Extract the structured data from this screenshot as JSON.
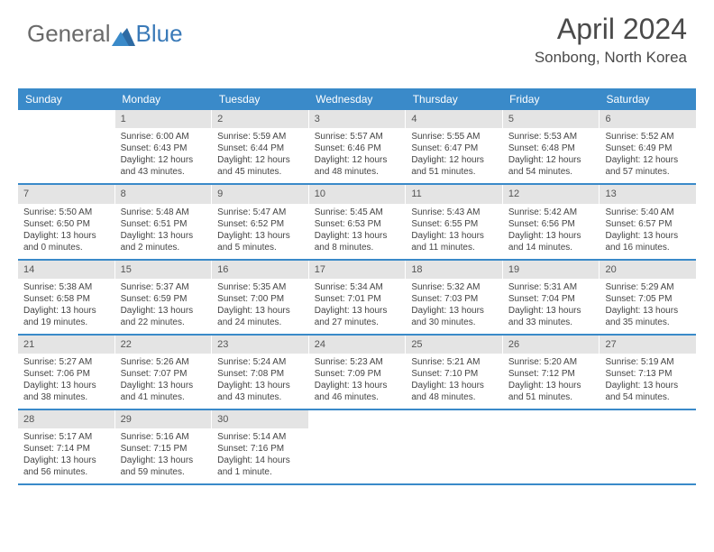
{
  "brand": {
    "part1": "General",
    "part2": "Blue"
  },
  "title": "April 2024",
  "location": "Sonbong, North Korea",
  "colors": {
    "header_bg": "#3a8ac9",
    "header_text": "#ffffff",
    "daynum_bg": "#e4e4e4",
    "daynum_text": "#555555",
    "body_text": "#444444",
    "rule": "#3a8ac9",
    "logo_gray": "#6a6a6a",
    "logo_blue": "#3a7ab8",
    "title_color": "#4a4a4a"
  },
  "typography": {
    "title_fontsize": 32,
    "location_fontsize": 17,
    "dow_fontsize": 12,
    "daynum_fontsize": 11,
    "body_fontsize": 10
  },
  "dow": [
    "Sunday",
    "Monday",
    "Tuesday",
    "Wednesday",
    "Thursday",
    "Friday",
    "Saturday"
  ],
  "weeks": [
    [
      {
        "n": "",
        "sr": "",
        "ss": "",
        "dl": ""
      },
      {
        "n": "1",
        "sr": "Sunrise: 6:00 AM",
        "ss": "Sunset: 6:43 PM",
        "dl": "Daylight: 12 hours and 43 minutes."
      },
      {
        "n": "2",
        "sr": "Sunrise: 5:59 AM",
        "ss": "Sunset: 6:44 PM",
        "dl": "Daylight: 12 hours and 45 minutes."
      },
      {
        "n": "3",
        "sr": "Sunrise: 5:57 AM",
        "ss": "Sunset: 6:46 PM",
        "dl": "Daylight: 12 hours and 48 minutes."
      },
      {
        "n": "4",
        "sr": "Sunrise: 5:55 AM",
        "ss": "Sunset: 6:47 PM",
        "dl": "Daylight: 12 hours and 51 minutes."
      },
      {
        "n": "5",
        "sr": "Sunrise: 5:53 AM",
        "ss": "Sunset: 6:48 PM",
        "dl": "Daylight: 12 hours and 54 minutes."
      },
      {
        "n": "6",
        "sr": "Sunrise: 5:52 AM",
        "ss": "Sunset: 6:49 PM",
        "dl": "Daylight: 12 hours and 57 minutes."
      }
    ],
    [
      {
        "n": "7",
        "sr": "Sunrise: 5:50 AM",
        "ss": "Sunset: 6:50 PM",
        "dl": "Daylight: 13 hours and 0 minutes."
      },
      {
        "n": "8",
        "sr": "Sunrise: 5:48 AM",
        "ss": "Sunset: 6:51 PM",
        "dl": "Daylight: 13 hours and 2 minutes."
      },
      {
        "n": "9",
        "sr": "Sunrise: 5:47 AM",
        "ss": "Sunset: 6:52 PM",
        "dl": "Daylight: 13 hours and 5 minutes."
      },
      {
        "n": "10",
        "sr": "Sunrise: 5:45 AM",
        "ss": "Sunset: 6:53 PM",
        "dl": "Daylight: 13 hours and 8 minutes."
      },
      {
        "n": "11",
        "sr": "Sunrise: 5:43 AM",
        "ss": "Sunset: 6:55 PM",
        "dl": "Daylight: 13 hours and 11 minutes."
      },
      {
        "n": "12",
        "sr": "Sunrise: 5:42 AM",
        "ss": "Sunset: 6:56 PM",
        "dl": "Daylight: 13 hours and 14 minutes."
      },
      {
        "n": "13",
        "sr": "Sunrise: 5:40 AM",
        "ss": "Sunset: 6:57 PM",
        "dl": "Daylight: 13 hours and 16 minutes."
      }
    ],
    [
      {
        "n": "14",
        "sr": "Sunrise: 5:38 AM",
        "ss": "Sunset: 6:58 PM",
        "dl": "Daylight: 13 hours and 19 minutes."
      },
      {
        "n": "15",
        "sr": "Sunrise: 5:37 AM",
        "ss": "Sunset: 6:59 PM",
        "dl": "Daylight: 13 hours and 22 minutes."
      },
      {
        "n": "16",
        "sr": "Sunrise: 5:35 AM",
        "ss": "Sunset: 7:00 PM",
        "dl": "Daylight: 13 hours and 24 minutes."
      },
      {
        "n": "17",
        "sr": "Sunrise: 5:34 AM",
        "ss": "Sunset: 7:01 PM",
        "dl": "Daylight: 13 hours and 27 minutes."
      },
      {
        "n": "18",
        "sr": "Sunrise: 5:32 AM",
        "ss": "Sunset: 7:03 PM",
        "dl": "Daylight: 13 hours and 30 minutes."
      },
      {
        "n": "19",
        "sr": "Sunrise: 5:31 AM",
        "ss": "Sunset: 7:04 PM",
        "dl": "Daylight: 13 hours and 33 minutes."
      },
      {
        "n": "20",
        "sr": "Sunrise: 5:29 AM",
        "ss": "Sunset: 7:05 PM",
        "dl": "Daylight: 13 hours and 35 minutes."
      }
    ],
    [
      {
        "n": "21",
        "sr": "Sunrise: 5:27 AM",
        "ss": "Sunset: 7:06 PM",
        "dl": "Daylight: 13 hours and 38 minutes."
      },
      {
        "n": "22",
        "sr": "Sunrise: 5:26 AM",
        "ss": "Sunset: 7:07 PM",
        "dl": "Daylight: 13 hours and 41 minutes."
      },
      {
        "n": "23",
        "sr": "Sunrise: 5:24 AM",
        "ss": "Sunset: 7:08 PM",
        "dl": "Daylight: 13 hours and 43 minutes."
      },
      {
        "n": "24",
        "sr": "Sunrise: 5:23 AM",
        "ss": "Sunset: 7:09 PM",
        "dl": "Daylight: 13 hours and 46 minutes."
      },
      {
        "n": "25",
        "sr": "Sunrise: 5:21 AM",
        "ss": "Sunset: 7:10 PM",
        "dl": "Daylight: 13 hours and 48 minutes."
      },
      {
        "n": "26",
        "sr": "Sunrise: 5:20 AM",
        "ss": "Sunset: 7:12 PM",
        "dl": "Daylight: 13 hours and 51 minutes."
      },
      {
        "n": "27",
        "sr": "Sunrise: 5:19 AM",
        "ss": "Sunset: 7:13 PM",
        "dl": "Daylight: 13 hours and 54 minutes."
      }
    ],
    [
      {
        "n": "28",
        "sr": "Sunrise: 5:17 AM",
        "ss": "Sunset: 7:14 PM",
        "dl": "Daylight: 13 hours and 56 minutes."
      },
      {
        "n": "29",
        "sr": "Sunrise: 5:16 AM",
        "ss": "Sunset: 7:15 PM",
        "dl": "Daylight: 13 hours and 59 minutes."
      },
      {
        "n": "30",
        "sr": "Sunrise: 5:14 AM",
        "ss": "Sunset: 7:16 PM",
        "dl": "Daylight: 14 hours and 1 minute."
      },
      {
        "n": "",
        "sr": "",
        "ss": "",
        "dl": ""
      },
      {
        "n": "",
        "sr": "",
        "ss": "",
        "dl": ""
      },
      {
        "n": "",
        "sr": "",
        "ss": "",
        "dl": ""
      },
      {
        "n": "",
        "sr": "",
        "ss": "",
        "dl": ""
      }
    ]
  ]
}
